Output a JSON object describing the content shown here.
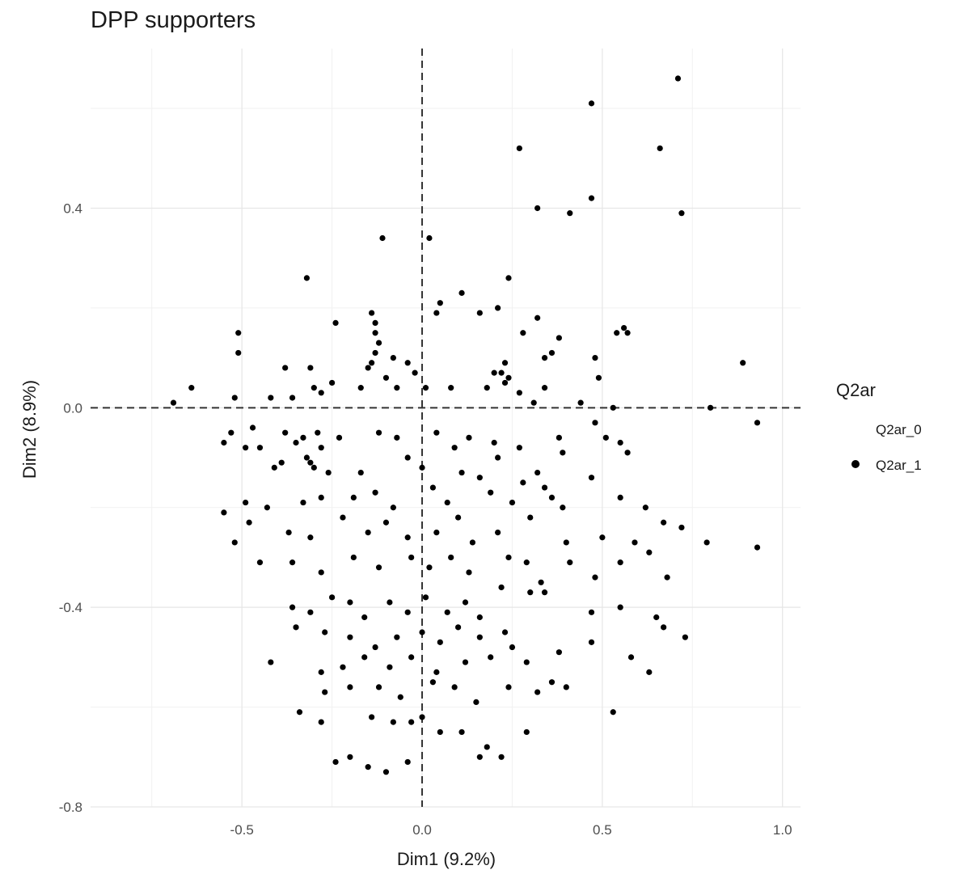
{
  "chart_data": {
    "type": "scatter",
    "title": "DPP supporters",
    "xlabel": "Dim1 (9.2%)",
    "ylabel": "Dim2 (8.9%)",
    "xlim": [
      -0.92,
      1.05
    ],
    "ylim": [
      -0.8,
      0.72
    ],
    "x_ticks": [
      -0.5,
      0.0,
      0.5,
      1.0
    ],
    "x_tick_labels": [
      "-0.5",
      "0.0",
      "0.5",
      "1.0"
    ],
    "y_ticks": [
      -0.8,
      -0.4,
      0.0,
      0.4
    ],
    "y_tick_labels": [
      "-0.8",
      "-0.4",
      "0.0",
      "0.4"
    ],
    "grid": true,
    "reference_lines": {
      "x": 0.0,
      "y": 0.0,
      "style": "dashed"
    },
    "legend": {
      "title": "Q2ar",
      "position": "right",
      "entries": [
        {
          "label": "Q2ar_0",
          "color": "#ffffff"
        },
        {
          "label": "Q2ar_1",
          "color": "#000000"
        }
      ]
    },
    "series": [
      {
        "name": "Q2ar_1",
        "color": "#000000",
        "points": [
          [
            0.71,
            0.66
          ],
          [
            0.47,
            0.61
          ],
          [
            0.66,
            0.52
          ],
          [
            0.27,
            0.52
          ],
          [
            0.47,
            0.42
          ],
          [
            0.32,
            0.4
          ],
          [
            0.41,
            0.39
          ],
          [
            0.72,
            0.39
          ],
          [
            -0.11,
            0.34
          ],
          [
            0.02,
            0.34
          ],
          [
            -0.32,
            0.26
          ],
          [
            0.24,
            0.26
          ],
          [
            0.11,
            0.23
          ],
          [
            0.05,
            0.21
          ],
          [
            0.04,
            0.19
          ],
          [
            0.21,
            0.2
          ],
          [
            0.16,
            0.19
          ],
          [
            0.32,
            0.18
          ],
          [
            -0.14,
            0.19
          ],
          [
            -0.13,
            0.17
          ],
          [
            -0.13,
            0.15
          ],
          [
            -0.24,
            0.17
          ],
          [
            0.56,
            0.16
          ],
          [
            0.57,
            0.15
          ],
          [
            0.54,
            0.15
          ],
          [
            0.28,
            0.15
          ],
          [
            0.38,
            0.14
          ],
          [
            -0.51,
            0.15
          ],
          [
            -0.51,
            0.11
          ],
          [
            -0.12,
            0.13
          ],
          [
            -0.13,
            0.11
          ],
          [
            -0.14,
            0.09
          ],
          [
            0.23,
            0.09
          ],
          [
            0.36,
            0.11
          ],
          [
            0.34,
            0.1
          ],
          [
            0.48,
            0.1
          ],
          [
            0.89,
            0.09
          ],
          [
            -0.38,
            0.08
          ],
          [
            -0.31,
            0.08
          ],
          [
            -0.08,
            0.1
          ],
          [
            -0.04,
            0.09
          ],
          [
            -0.15,
            0.08
          ],
          [
            0.22,
            0.07
          ],
          [
            0.24,
            0.06
          ],
          [
            0.2,
            0.07
          ],
          [
            -0.02,
            0.07
          ],
          [
            0.23,
            0.05
          ],
          [
            -0.1,
            0.06
          ],
          [
            0.49,
            0.06
          ],
          [
            -0.3,
            0.04
          ],
          [
            -0.28,
            0.03
          ],
          [
            -0.25,
            0.05
          ],
          [
            -0.64,
            0.04
          ],
          [
            -0.69,
            0.01
          ],
          [
            -0.52,
            0.02
          ],
          [
            -0.42,
            0.02
          ],
          [
            -0.36,
            0.02
          ],
          [
            -0.17,
            0.04
          ],
          [
            -0.07,
            0.04
          ],
          [
            0.01,
            0.04
          ],
          [
            0.08,
            0.04
          ],
          [
            0.18,
            0.04
          ],
          [
            0.27,
            0.03
          ],
          [
            0.34,
            0.04
          ],
          [
            0.31,
            0.01
          ],
          [
            0.44,
            0.01
          ],
          [
            0.53,
            0.0
          ],
          [
            0.8,
            0.0
          ],
          [
            0.93,
            -0.03
          ],
          [
            -0.55,
            -0.07
          ],
          [
            -0.53,
            -0.05
          ],
          [
            -0.47,
            -0.04
          ],
          [
            -0.45,
            -0.08
          ],
          [
            -0.49,
            -0.08
          ],
          [
            -0.38,
            -0.05
          ],
          [
            -0.35,
            -0.07
          ],
          [
            -0.33,
            -0.06
          ],
          [
            -0.29,
            -0.05
          ],
          [
            -0.28,
            -0.08
          ],
          [
            -0.23,
            -0.06
          ],
          [
            -0.12,
            -0.05
          ],
          [
            -0.07,
            -0.06
          ],
          [
            0.04,
            -0.05
          ],
          [
            0.09,
            -0.08
          ],
          [
            0.13,
            -0.06
          ],
          [
            0.2,
            -0.07
          ],
          [
            0.27,
            -0.08
          ],
          [
            0.38,
            -0.06
          ],
          [
            0.48,
            -0.03
          ],
          [
            0.51,
            -0.06
          ],
          [
            0.55,
            -0.07
          ],
          [
            0.57,
            -0.09
          ],
          [
            0.39,
            -0.09
          ],
          [
            0.21,
            -0.1
          ],
          [
            -0.41,
            -0.12
          ],
          [
            -0.39,
            -0.11
          ],
          [
            -0.32,
            -0.1
          ],
          [
            -0.31,
            -0.11
          ],
          [
            -0.3,
            -0.12
          ],
          [
            -0.26,
            -0.13
          ],
          [
            -0.17,
            -0.13
          ],
          [
            -0.04,
            -0.1
          ],
          [
            0.0,
            -0.12
          ],
          [
            0.11,
            -0.13
          ],
          [
            0.16,
            -0.14
          ],
          [
            0.28,
            -0.15
          ],
          [
            0.32,
            -0.13
          ],
          [
            0.34,
            -0.16
          ],
          [
            0.47,
            -0.14
          ],
          [
            -0.55,
            -0.21
          ],
          [
            -0.49,
            -0.19
          ],
          [
            -0.43,
            -0.2
          ],
          [
            -0.33,
            -0.19
          ],
          [
            -0.28,
            -0.18
          ],
          [
            -0.19,
            -0.18
          ],
          [
            -0.13,
            -0.17
          ],
          [
            -0.08,
            -0.2
          ],
          [
            0.03,
            -0.16
          ],
          [
            0.07,
            -0.19
          ],
          [
            0.19,
            -0.17
          ],
          [
            0.25,
            -0.19
          ],
          [
            0.36,
            -0.18
          ],
          [
            0.39,
            -0.2
          ],
          [
            0.55,
            -0.18
          ],
          [
            0.62,
            -0.2
          ],
          [
            -0.52,
            -0.27
          ],
          [
            -0.48,
            -0.23
          ],
          [
            -0.37,
            -0.25
          ],
          [
            -0.31,
            -0.26
          ],
          [
            -0.22,
            -0.22
          ],
          [
            -0.15,
            -0.25
          ],
          [
            -0.1,
            -0.23
          ],
          [
            -0.04,
            -0.26
          ],
          [
            0.04,
            -0.25
          ],
          [
            0.1,
            -0.22
          ],
          [
            0.14,
            -0.27
          ],
          [
            0.21,
            -0.25
          ],
          [
            0.3,
            -0.22
          ],
          [
            0.4,
            -0.27
          ],
          [
            0.5,
            -0.26
          ],
          [
            0.59,
            -0.27
          ],
          [
            0.67,
            -0.23
          ],
          [
            0.72,
            -0.24
          ],
          [
            0.79,
            -0.27
          ],
          [
            0.93,
            -0.28
          ],
          [
            -0.45,
            -0.31
          ],
          [
            -0.36,
            -0.31
          ],
          [
            -0.28,
            -0.33
          ],
          [
            -0.19,
            -0.3
          ],
          [
            -0.12,
            -0.32
          ],
          [
            -0.03,
            -0.3
          ],
          [
            0.02,
            -0.32
          ],
          [
            0.08,
            -0.3
          ],
          [
            0.13,
            -0.33
          ],
          [
            0.24,
            -0.3
          ],
          [
            0.29,
            -0.31
          ],
          [
            0.33,
            -0.35
          ],
          [
            0.41,
            -0.31
          ],
          [
            0.48,
            -0.34
          ],
          [
            0.55,
            -0.31
          ],
          [
            0.63,
            -0.29
          ],
          [
            0.68,
            -0.34
          ],
          [
            -0.36,
            -0.4
          ],
          [
            -0.31,
            -0.41
          ],
          [
            -0.25,
            -0.38
          ],
          [
            -0.2,
            -0.39
          ],
          [
            -0.16,
            -0.42
          ],
          [
            -0.09,
            -0.39
          ],
          [
            -0.04,
            -0.41
          ],
          [
            0.01,
            -0.38
          ],
          [
            0.07,
            -0.41
          ],
          [
            0.12,
            -0.39
          ],
          [
            0.16,
            -0.42
          ],
          [
            0.22,
            -0.36
          ],
          [
            0.3,
            -0.37
          ],
          [
            0.34,
            -0.37
          ],
          [
            0.47,
            -0.41
          ],
          [
            0.55,
            -0.4
          ],
          [
            -0.35,
            -0.44
          ],
          [
            -0.27,
            -0.45
          ],
          [
            -0.2,
            -0.46
          ],
          [
            -0.13,
            -0.48
          ],
          [
            -0.07,
            -0.46
          ],
          [
            0.0,
            -0.45
          ],
          [
            0.05,
            -0.47
          ],
          [
            0.1,
            -0.44
          ],
          [
            0.16,
            -0.46
          ],
          [
            0.23,
            -0.45
          ],
          [
            0.25,
            -0.48
          ],
          [
            0.47,
            -0.47
          ],
          [
            0.65,
            -0.42
          ],
          [
            0.67,
            -0.44
          ],
          [
            0.73,
            -0.46
          ],
          [
            -0.42,
            -0.51
          ],
          [
            -0.28,
            -0.53
          ],
          [
            -0.22,
            -0.52
          ],
          [
            -0.16,
            -0.5
          ],
          [
            -0.09,
            -0.52
          ],
          [
            -0.03,
            -0.5
          ],
          [
            0.04,
            -0.53
          ],
          [
            0.12,
            -0.51
          ],
          [
            0.19,
            -0.5
          ],
          [
            0.29,
            -0.51
          ],
          [
            0.38,
            -0.49
          ],
          [
            0.58,
            -0.5
          ],
          [
            0.63,
            -0.53
          ],
          [
            -0.27,
            -0.57
          ],
          [
            -0.2,
            -0.56
          ],
          [
            -0.12,
            -0.56
          ],
          [
            -0.06,
            -0.58
          ],
          [
            0.03,
            -0.55
          ],
          [
            0.09,
            -0.56
          ],
          [
            0.15,
            -0.59
          ],
          [
            0.24,
            -0.56
          ],
          [
            0.32,
            -0.57
          ],
          [
            0.36,
            -0.55
          ],
          [
            0.4,
            -0.56
          ],
          [
            -0.34,
            -0.61
          ],
          [
            -0.28,
            -0.63
          ],
          [
            -0.14,
            -0.62
          ],
          [
            -0.08,
            -0.63
          ],
          [
            -0.03,
            -0.63
          ],
          [
            0.0,
            -0.62
          ],
          [
            0.05,
            -0.65
          ],
          [
            0.11,
            -0.65
          ],
          [
            0.29,
            -0.65
          ],
          [
            0.53,
            -0.61
          ],
          [
            -0.24,
            -0.71
          ],
          [
            -0.2,
            -0.7
          ],
          [
            -0.15,
            -0.72
          ],
          [
            -0.1,
            -0.73
          ],
          [
            -0.04,
            -0.71
          ],
          [
            0.16,
            -0.7
          ],
          [
            0.18,
            -0.68
          ],
          [
            0.22,
            -0.7
          ]
        ]
      }
    ]
  }
}
